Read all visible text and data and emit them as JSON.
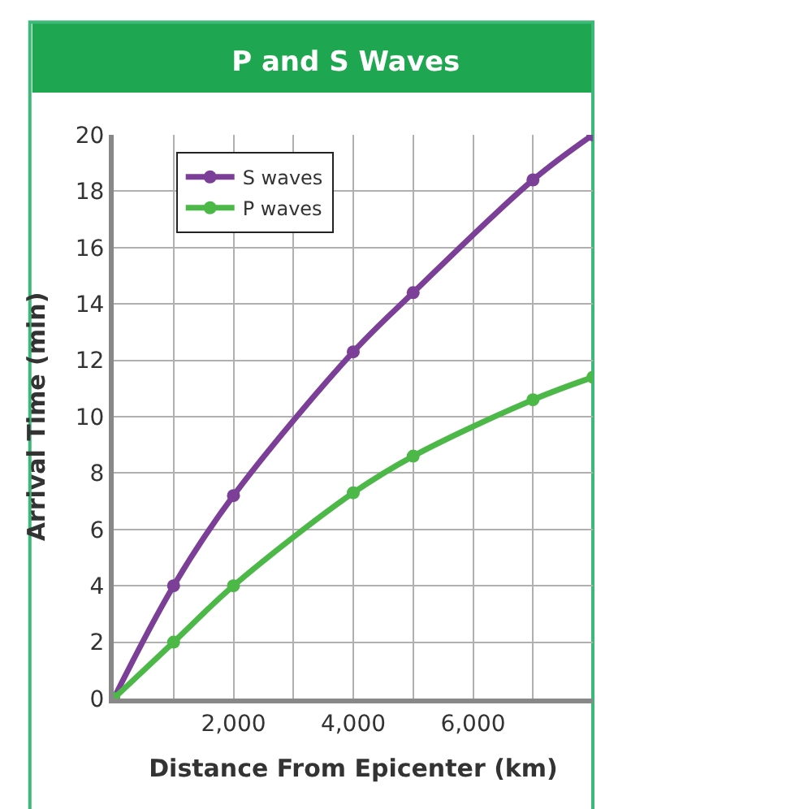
{
  "chart_data": {
    "type": "line",
    "title": "P and S Waves",
    "xlabel": "Distance From Epicenter (km)",
    "ylabel": "Arrival Time (min)",
    "series": [
      {
        "name": "S waves",
        "color": "#7b3f98",
        "x": [
          0,
          1000,
          2000,
          4000,
          5000,
          7000,
          8000
        ],
        "values": [
          0,
          4,
          7.2,
          12.3,
          14.4,
          18.4,
          20
        ]
      },
      {
        "name": "P waves",
        "color": "#4cb848",
        "x": [
          0,
          1000,
          2000,
          4000,
          5000,
          7000,
          8000
        ],
        "values": [
          0,
          2,
          4,
          7.3,
          8.6,
          10.6,
          11.4
        ]
      }
    ],
    "xlim": [
      0,
      8000
    ],
    "xticks": [
      {
        "value": 0,
        "label": null
      },
      {
        "value": 1000,
        "label": null
      },
      {
        "value": 2000,
        "label": "2,000"
      },
      {
        "value": 3000,
        "label": null
      },
      {
        "value": 4000,
        "label": "4,000"
      },
      {
        "value": 5000,
        "label": null
      },
      {
        "value": 6000,
        "label": "6,000"
      },
      {
        "value": 7000,
        "label": null
      },
      {
        "value": 8000,
        "label": null
      }
    ],
    "ylim": [
      0,
      20
    ],
    "yticks": [
      0,
      2,
      4,
      6,
      8,
      10,
      12,
      14,
      16,
      18,
      20
    ],
    "grid": true,
    "legend": "top left",
    "marker": "circle",
    "line_style": "solid"
  }
}
